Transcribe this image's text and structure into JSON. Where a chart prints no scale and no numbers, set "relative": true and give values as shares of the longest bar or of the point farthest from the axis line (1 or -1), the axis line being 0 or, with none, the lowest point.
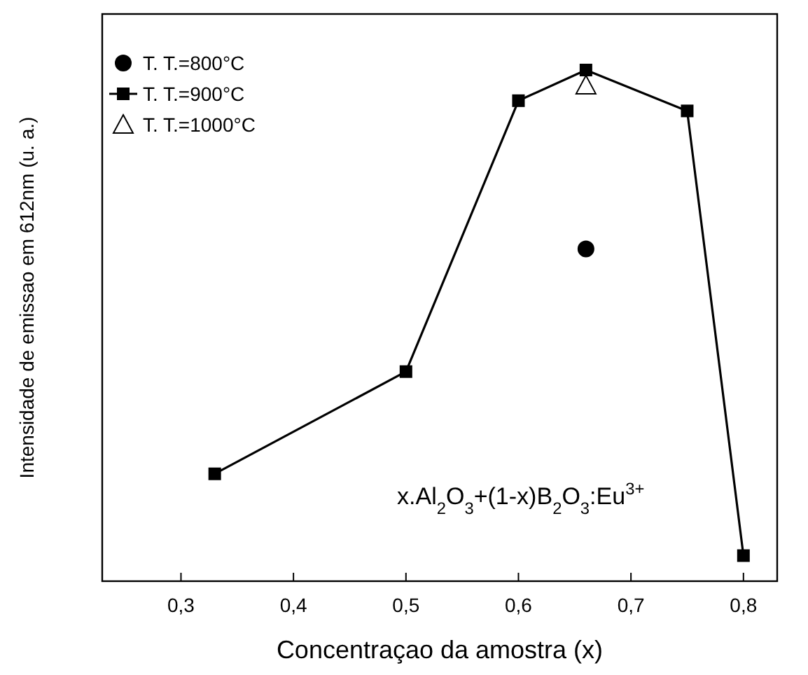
{
  "chart_data": {
    "type": "line",
    "xlabel": "Concentraçao da amostra (x)",
    "ylabel": "Intensidade de emissao em 612nm (u. a.)",
    "relative": true,
    "xlim": [
      0.23,
      0.83
    ],
    "xticks": [
      {
        "value": 0.3,
        "label": "0,3"
      },
      {
        "value": 0.4,
        "label": "0,4"
      },
      {
        "value": 0.5,
        "label": "0,5"
      },
      {
        "value": 0.6,
        "label": "0,6"
      },
      {
        "value": 0.7,
        "label": "0,7"
      },
      {
        "value": 0.8,
        "label": "0,8"
      }
    ],
    "legend": "top left",
    "annotations": [
      "x.Al$_{2}$O$_{3}$+(1-x)B$_{2}$O$_{3}$:Eu$^{3+}$"
    ],
    "series": [
      {
        "name": "T. T.=800°C",
        "type": "scatter",
        "marker": "circle",
        "color": "#000000",
        "x": [
          0.66
        ],
        "values": [
          0.65
        ]
      },
      {
        "name": "T. T.=900°C",
        "type": "line",
        "marker": "square",
        "color": "#000000",
        "x": [
          0.33,
          0.5,
          0.6,
          0.66,
          0.75,
          0.8
        ],
        "values": [
          0.21,
          0.41,
          0.94,
          1,
          0.92,
          0.05
        ]
      },
      {
        "name": "T. T.=1000°C",
        "type": "scatter",
        "marker": "triangle",
        "color": "#000000",
        "x": [
          0.66
        ],
        "values": [
          0.97
        ]
      }
    ]
  }
}
